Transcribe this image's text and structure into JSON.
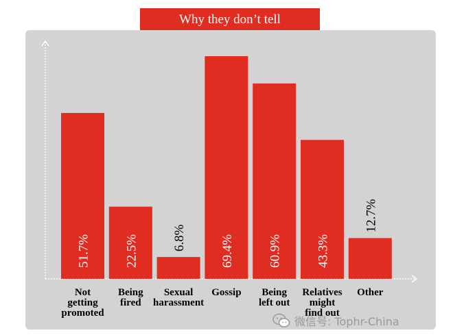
{
  "chart_data": {
    "type": "bar",
    "title": "Why they don’t tell",
    "categories": [
      [
        "Not",
        "getting",
        "promoted"
      ],
      [
        "Being",
        "fired"
      ],
      [
        "Sexual",
        "harassment"
      ],
      [
        "Gossip"
      ],
      [
        "Being",
        "left out"
      ],
      [
        "Relatives",
        "might",
        "find out"
      ],
      [
        "Other"
      ]
    ],
    "values": [
      51.7,
      22.5,
      6.8,
      69.4,
      60.9,
      43.3,
      12.7
    ],
    "value_labels": [
      "51.7%",
      "22.5%",
      "6.8%",
      "69.4%",
      "60.9%",
      "43.3%",
      "12.7%"
    ],
    "ylim": [
      0,
      80
    ],
    "grid": false,
    "xlabel": "",
    "ylabel": "",
    "bar_color": "#e02d22",
    "panel_color": "#d3d3d3"
  },
  "watermark": {
    "icon": "wechat-icon",
    "text": "微信号: Tophr-China"
  }
}
